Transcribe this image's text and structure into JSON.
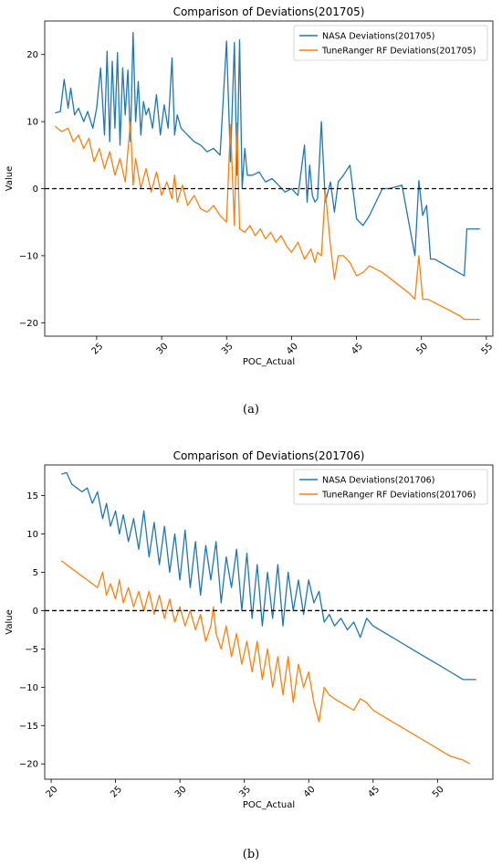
{
  "chart_data": [
    {
      "type": "line",
      "title": "Comparison of Deviations(201705)",
      "xlabel": "POC_Actual",
      "ylabel": "Value",
      "xlim": [
        21.0,
        55.5
      ],
      "ylim": [
        -22.0,
        25.0
      ],
      "xticks": [
        25,
        30,
        35,
        40,
        45,
        50,
        55
      ],
      "yticks": [
        -20,
        -10,
        0,
        10,
        20
      ],
      "xtick_labels": [
        "25",
        "30",
        "35",
        "40",
        "45",
        "50",
        "55"
      ],
      "ytick_labels": [
        "−20",
        "−10",
        "0",
        "10",
        "20"
      ],
      "zero_line": 0,
      "grid": false,
      "legend": "top-right",
      "caption": "(a)",
      "series": [
        {
          "name": "NASA Deviations(201705)",
          "color": "#1f77b4",
          "x": [
            21.8,
            22.2,
            22.5,
            22.8,
            23.0,
            23.3,
            23.6,
            24.0,
            24.3,
            24.7,
            25.0,
            25.3,
            25.6,
            25.8,
            26.0,
            26.2,
            26.4,
            26.6,
            26.8,
            27.0,
            27.2,
            27.4,
            27.6,
            27.8,
            28.0,
            28.2,
            28.4,
            28.6,
            28.8,
            29.0,
            29.3,
            29.6,
            29.9,
            30.2,
            30.5,
            30.8,
            31.0,
            31.2,
            31.5,
            32.0,
            32.5,
            33.0,
            33.5,
            34.0,
            34.5,
            35.0,
            35.3,
            35.6,
            35.8,
            36.0,
            36.2,
            36.4,
            36.6,
            37.0,
            37.5,
            38.0,
            38.5,
            39.0,
            39.5,
            40.0,
            40.5,
            41.0,
            41.2,
            41.4,
            41.6,
            41.8,
            42.0,
            42.3,
            42.6,
            43.0,
            43.3,
            43.6,
            44.0,
            44.5,
            45.0,
            45.5,
            46.0,
            47.0,
            47.5,
            48.5,
            49.5,
            49.8,
            50.1,
            50.4,
            50.7,
            51.0,
            53.3,
            53.5,
            54.5
          ],
          "values": [
            11.3,
            11.5,
            16.3,
            12,
            15,
            11,
            12,
            10,
            11.5,
            9,
            12,
            18,
            8,
            20.5,
            7,
            19,
            9,
            20.3,
            6.5,
            18,
            11,
            17.7,
            7,
            23.3,
            10,
            16,
            8,
            13,
            11,
            12,
            9,
            14,
            8,
            12.5,
            9,
            19.5,
            8,
            11,
            9,
            8,
            7,
            6.5,
            5.5,
            6,
            5,
            22,
            4,
            21.8,
            2,
            22.2,
            0,
            6,
            2,
            2,
            2.5,
            1,
            1.5,
            0.5,
            -0.5,
            0,
            -1,
            6.5,
            -2,
            3.5,
            -1,
            -2,
            -1.5,
            10,
            -2,
            1,
            -3.5,
            1,
            2,
            3.5,
            -4.5,
            -5.5,
            -4,
            0,
            0,
            0.5,
            -10,
            1.2,
            -4,
            -2.5,
            -10.5,
            -10.5,
            -13,
            -6,
            -6
          ]
        },
        {
          "name": "TuneRanger RF Deviations(201705)",
          "color": "#ff7f0e",
          "x": [
            21.8,
            22.3,
            22.8,
            23.2,
            23.6,
            24.0,
            24.4,
            24.8,
            25.2,
            25.6,
            26.0,
            26.4,
            26.8,
            27.2,
            27.6,
            27.8,
            28.0,
            28.4,
            28.8,
            29.2,
            29.6,
            30.0,
            30.4,
            30.8,
            31.0,
            31.2,
            31.6,
            32.0,
            32.5,
            33.0,
            33.5,
            34.0,
            34.5,
            35.0,
            35.3,
            35.6,
            35.8,
            36.0,
            36.4,
            36.8,
            37.2,
            37.6,
            38.0,
            38.4,
            38.8,
            39.2,
            39.6,
            40.0,
            40.5,
            41.0,
            41.5,
            41.8,
            42.0,
            42.3,
            42.6,
            43.0,
            43.3,
            43.6,
            44.0,
            44.5,
            45.0,
            45.5,
            46.0,
            47.0,
            48.0,
            49.0,
            49.5,
            49.8,
            50.1,
            50.5,
            51.0,
            52.0,
            53.0,
            53.3,
            54.0,
            54.5
          ],
          "values": [
            9.3,
            8.5,
            9,
            7,
            8,
            6,
            7.5,
            4,
            6,
            3,
            5.5,
            2,
            4.5,
            1,
            10,
            0.5,
            4.5,
            0,
            3,
            -0.5,
            2.5,
            -1,
            1,
            -1.5,
            2,
            -2,
            0.5,
            -2.5,
            -1,
            -3,
            -3.5,
            -2.5,
            -4,
            -5,
            9.5,
            -5.5,
            9.8,
            -6,
            -6.5,
            -5.5,
            -7,
            -6,
            -7.5,
            -6.5,
            -8,
            -7,
            -8.5,
            -9.5,
            -8,
            -10.5,
            -9,
            -11,
            -9.5,
            -10,
            -0.5,
            -8.5,
            -13.5,
            -10,
            -10,
            -11,
            -13,
            -12.5,
            -11.5,
            -12.5,
            -14,
            -15.5,
            -16.5,
            -10,
            -16.5,
            -16.5,
            -17,
            -18,
            -19,
            -19.5,
            -19.5,
            -19.5
          ]
        }
      ]
    },
    {
      "type": "line",
      "title": "Comparison of Deviations(201706)",
      "xlabel": "POC_Actual",
      "ylabel": "Value",
      "xlim": [
        19.5,
        54.3
      ],
      "ylim": [
        -22.0,
        19.0
      ],
      "xticks": [
        20,
        25,
        30,
        35,
        40,
        45,
        50
      ],
      "yticks": [
        -20,
        -15,
        -10,
        -5,
        0,
        5,
        10,
        15
      ],
      "xtick_labels": [
        "20",
        "25",
        "30",
        "35",
        "40",
        "45",
        "50"
      ],
      "ytick_labels": [
        "−20",
        "−15",
        "−10",
        "−5",
        "0",
        "5",
        "10",
        "15"
      ],
      "zero_line": 0,
      "grid": false,
      "legend": "top-right",
      "caption": "(b)",
      "series": [
        {
          "name": "NASA Deviations(201706)",
          "color": "#1f77b4",
          "x": [
            20.8,
            21.2,
            21.6,
            22.0,
            22.4,
            22.8,
            23.2,
            23.6,
            24.0,
            24.3,
            24.6,
            25.0,
            25.3,
            25.6,
            26.0,
            26.4,
            26.8,
            27.2,
            27.6,
            28.0,
            28.4,
            28.8,
            29.2,
            29.6,
            30.0,
            30.4,
            30.8,
            31.2,
            31.6,
            32.0,
            32.4,
            32.8,
            33.2,
            33.6,
            34.0,
            34.4,
            34.8,
            35.2,
            35.6,
            36.0,
            36.4,
            36.8,
            37.2,
            37.6,
            38.0,
            38.4,
            38.8,
            39.2,
            39.6,
            40.0,
            40.4,
            40.8,
            41.2,
            41.6,
            42.0,
            42.5,
            43.0,
            43.5,
            44.0,
            44.5,
            45.0,
            46.0,
            47.0,
            48.0,
            49.0,
            50.0,
            51.0,
            52.0,
            52.5,
            53.0
          ],
          "values": [
            17.8,
            18,
            16.5,
            16,
            15.5,
            16,
            14,
            15.5,
            12,
            14,
            11,
            13,
            10,
            12.5,
            9,
            12,
            8,
            13,
            7,
            11.5,
            6,
            11,
            5,
            10,
            4,
            10.5,
            3,
            9,
            2,
            8.5,
            4,
            9,
            1,
            7,
            3,
            8,
            0,
            7.5,
            -1,
            6,
            -2,
            5,
            -1,
            6,
            -2,
            5,
            0,
            4,
            -0.5,
            4,
            1,
            2.5,
            -1.5,
            -0.5,
            -2,
            -1,
            -2.5,
            -1.5,
            -3.5,
            -1,
            -2,
            -3,
            -4,
            -5,
            -6,
            -7,
            -8,
            -9,
            -9,
            -9
          ]
        },
        {
          "name": "TuneRanger RF Deviations(201706)",
          "color": "#ff7f0e",
          "x": [
            20.8,
            21.2,
            21.6,
            22.0,
            22.4,
            22.8,
            23.2,
            23.6,
            24.0,
            24.3,
            24.6,
            25.0,
            25.3,
            25.6,
            26.0,
            26.4,
            26.8,
            27.2,
            27.6,
            28.0,
            28.4,
            28.8,
            29.2,
            29.6,
            30.0,
            30.4,
            30.8,
            31.2,
            31.6,
            32.0,
            32.4,
            32.6,
            32.8,
            33.2,
            33.6,
            34.0,
            34.4,
            34.8,
            35.2,
            35.6,
            36.0,
            36.4,
            36.8,
            37.2,
            37.6,
            38.0,
            38.4,
            38.8,
            39.2,
            39.6,
            40.0,
            40.4,
            40.8,
            41.2,
            41.6,
            42.0,
            42.5,
            43.0,
            43.5,
            44.0,
            44.5,
            45.0,
            46.0,
            47.0,
            48.0,
            49.0,
            50.0,
            51.0,
            52.0,
            52.5
          ],
          "values": [
            6.5,
            6,
            5.5,
            5,
            4.5,
            4,
            3.5,
            3,
            5,
            2,
            3.5,
            1.5,
            4,
            1,
            3,
            0.5,
            2.5,
            0,
            2.5,
            -0.5,
            2,
            -1,
            1.5,
            -1.5,
            0.5,
            -2,
            0,
            -2.5,
            -0.5,
            -4,
            -2,
            0.5,
            -3,
            -5,
            -2,
            -6,
            -3,
            -7,
            -4,
            -8,
            -4,
            -9,
            -5,
            -10,
            -6,
            -11,
            -6,
            -12,
            -7,
            -10,
            -8,
            -12,
            -14.5,
            -10,
            -11,
            -11.5,
            -12,
            -12.5,
            -13,
            -11.5,
            -12,
            -13,
            -14,
            -15,
            -16,
            -17,
            -18,
            -19,
            -19.5,
            -20
          ]
        }
      ]
    }
  ]
}
